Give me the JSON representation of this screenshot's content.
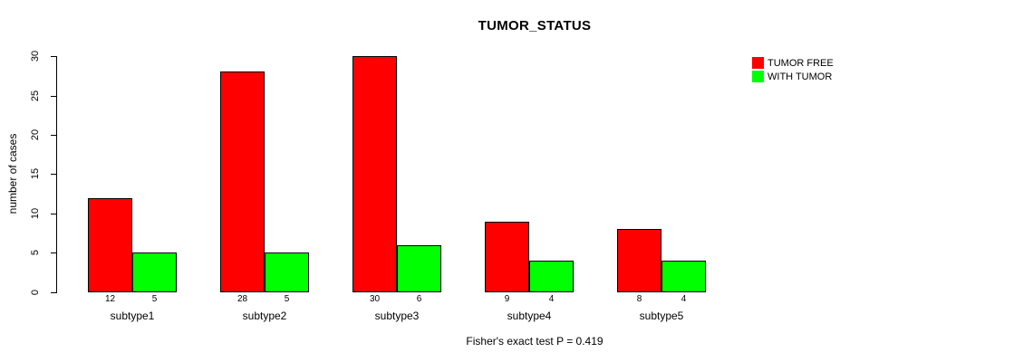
{
  "chart_data": {
    "type": "bar",
    "title": "TUMOR_STATUS",
    "xlabel": "",
    "ylabel": "number of cases",
    "footnote": "Fisher's exact test P = 0.419",
    "categories": [
      "subtype1",
      "subtype2",
      "subtype3",
      "subtype4",
      "subtype5"
    ],
    "series": [
      {
        "name": "TUMOR FREE",
        "color": "#ff0000",
        "values": [
          12,
          28,
          30,
          9,
          8
        ]
      },
      {
        "name": "WITH TUMOR",
        "color": "#00ff00",
        "values": [
          5,
          5,
          6,
          4,
          4
        ]
      }
    ],
    "ylim": [
      0,
      30
    ],
    "yticks": [
      0,
      5,
      10,
      15,
      20,
      25,
      30
    ],
    "grid": false,
    "legend_position": "top-right",
    "bar_value_labels": true,
    "bar_border_color": "#000000",
    "background": "#ffffff"
  }
}
